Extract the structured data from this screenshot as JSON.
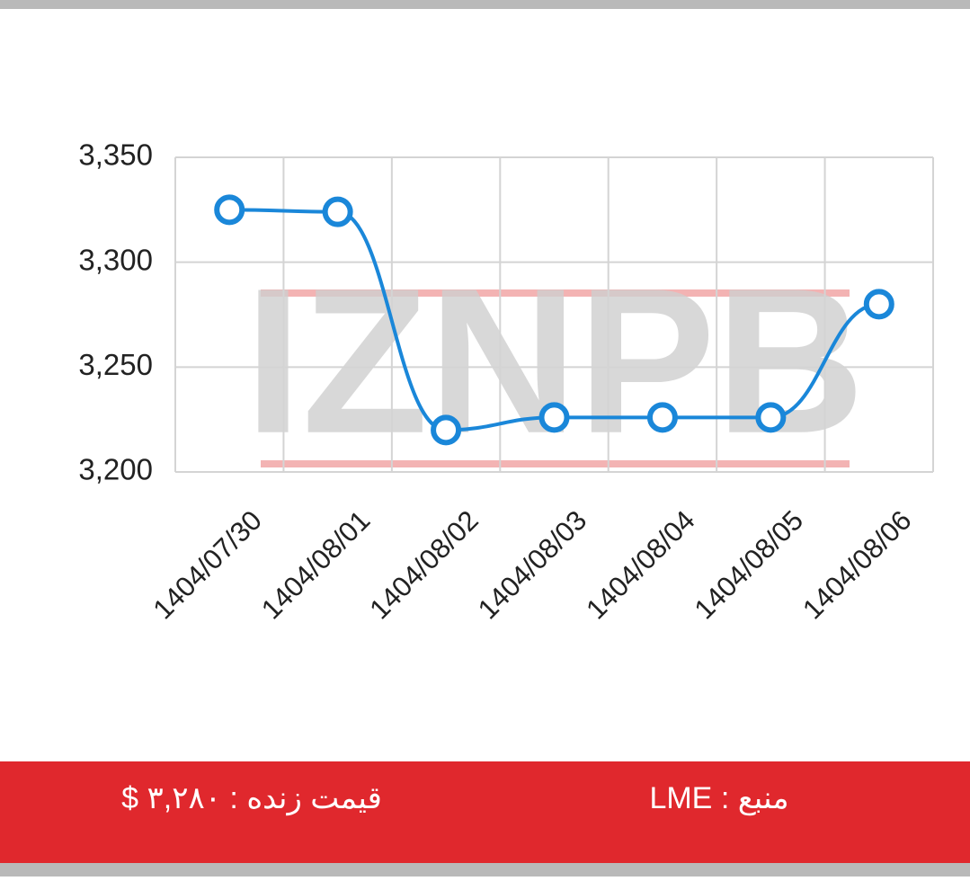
{
  "chart_data": {
    "type": "line",
    "categories": [
      "1404/07/30",
      "1404/08/01",
      "1404/08/02",
      "1404/08/03",
      "1404/08/04",
      "1404/08/05",
      "1404/08/06"
    ],
    "series": [
      {
        "color": "#1a87d9",
        "values": [
          3325,
          3324,
          3220,
          3226,
          3226,
          3226,
          3280
        ]
      }
    ],
    "ylim": [
      3200,
      3350
    ],
    "yticks": [
      {
        "value": 3200,
        "label": "3,200"
      },
      {
        "value": 3250,
        "label": "3,250"
      },
      {
        "value": 3300,
        "label": "3,300"
      },
      {
        "value": 3350,
        "label": "3,350"
      }
    ],
    "grid": true,
    "watermark": "IZNPB",
    "annotations": [
      "قیمت زنده : ۳,۲۸۰ $",
      "منبع : LME"
    ]
  }
}
